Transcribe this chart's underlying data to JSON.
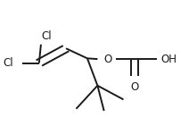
{
  "bg_color": "#ffffff",
  "line_color": "#1a1a1a",
  "label_color": "#1a1a1a",
  "bond_lw": 1.4,
  "font_size": 8.5,
  "xlim": [
    0.0,
    1.0
  ],
  "ylim": [
    0.0,
    1.0
  ]
}
